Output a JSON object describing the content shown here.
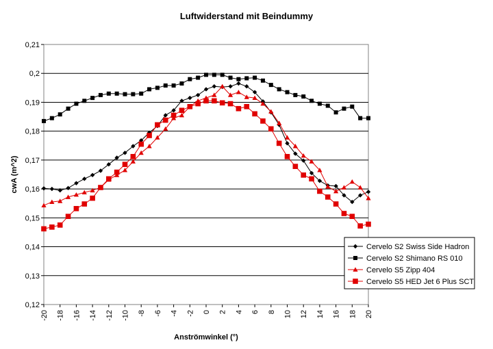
{
  "chart_data": {
    "type": "line",
    "title": "Luftwiderstand mit Beindummy",
    "xlabel": "Anströmwinkel (°)",
    "ylabel": "cwA (m^2)",
    "xlim": [
      -20,
      20
    ],
    "ylim": [
      0.12,
      0.21
    ],
    "x_ticks": [
      "-20",
      "-18",
      "-16",
      "-14",
      "-12",
      "-10",
      "-8",
      "-6",
      "-4",
      "-2",
      "0",
      "2",
      "4",
      "6",
      "8",
      "10",
      "12",
      "14",
      "16",
      "18",
      "20"
    ],
    "y_ticks": [
      "0,12",
      "0,13",
      "0,14",
      "0,15",
      "0,16",
      "0,17",
      "0,18",
      "0,19",
      "0,2",
      "0,21"
    ],
    "grid": "horizontal",
    "legend_position": "bottom-right",
    "x": [
      -20,
      -19,
      -18,
      -17,
      -16,
      -15,
      -14,
      -13,
      -12,
      -11,
      -10,
      -9,
      -8,
      -7,
      -6,
      -5,
      -4,
      -3,
      -2,
      -1,
      0,
      1,
      2,
      3,
      4,
      5,
      6,
      7,
      8,
      9,
      10,
      11,
      12,
      13,
      14,
      15,
      16,
      17,
      18,
      19,
      20
    ],
    "series": [
      {
        "name": "Cervelo S2 Swiss Side Hadron",
        "color": "#000000",
        "marker": "diamond",
        "values": [
          0.1602,
          0.16,
          0.1595,
          0.1603,
          0.162,
          0.1635,
          0.1648,
          0.1663,
          0.1685,
          0.1708,
          0.1725,
          0.1748,
          0.1768,
          0.1795,
          0.1818,
          0.1855,
          0.1872,
          0.1905,
          0.1915,
          0.1925,
          0.1945,
          0.1955,
          0.1953,
          0.1955,
          0.1965,
          0.1955,
          0.1935,
          0.1903,
          0.1865,
          0.1822,
          0.1758,
          0.1722,
          0.1698,
          0.1655,
          0.1628,
          0.1612,
          0.161,
          0.1578,
          0.1555,
          0.1578,
          0.159
        ]
      },
      {
        "name": "Cervelo S2 Shimano RS 010",
        "color": "#000000",
        "marker": "square",
        "values": [
          0.1835,
          0.1845,
          0.1858,
          0.1878,
          0.1895,
          0.1905,
          0.1915,
          0.1925,
          0.193,
          0.193,
          0.1928,
          0.1928,
          0.193,
          0.1945,
          0.195,
          0.1958,
          0.1958,
          0.1965,
          0.198,
          0.1985,
          0.1995,
          0.1995,
          0.1995,
          0.1985,
          0.198,
          0.1983,
          0.1985,
          0.1975,
          0.196,
          0.1945,
          0.1935,
          0.1925,
          0.192,
          0.1905,
          0.1895,
          0.1888,
          0.1865,
          0.1878,
          0.1885,
          0.1845,
          0.1845
        ]
      },
      {
        "name": "Cervelo S5 Zipp 404",
        "color": "#e00000",
        "marker": "triangle",
        "values": [
          0.1543,
          0.1555,
          0.1558,
          0.1572,
          0.158,
          0.1588,
          0.1595,
          0.1605,
          0.1632,
          0.1648,
          0.1665,
          0.1695,
          0.1725,
          0.1748,
          0.1778,
          0.1808,
          0.1845,
          0.1855,
          0.1885,
          0.1905,
          0.1915,
          0.1925,
          0.1955,
          0.1925,
          0.1935,
          0.1918,
          0.1915,
          0.1895,
          0.1868,
          0.1828,
          0.1778,
          0.1748,
          0.1715,
          0.1695,
          0.1665,
          0.1608,
          0.1592,
          0.1605,
          0.1625,
          0.1605,
          0.1568
        ]
      },
      {
        "name": "Cervelo S5 HED Jet 6 Plus SCT",
        "color": "#e00000",
        "marker": "square",
        "values": [
          0.1462,
          0.1468,
          0.1475,
          0.1505,
          0.1532,
          0.1548,
          0.1568,
          0.1605,
          0.1635,
          0.1658,
          0.1685,
          0.1712,
          0.1755,
          0.1785,
          0.1822,
          0.1838,
          0.1855,
          0.1872,
          0.1885,
          0.1895,
          0.1905,
          0.1905,
          0.1898,
          0.1895,
          0.1878,
          0.1885,
          0.186,
          0.1835,
          0.1808,
          0.1758,
          0.1712,
          0.1678,
          0.1648,
          0.1635,
          0.1592,
          0.1572,
          0.1548,
          0.1515,
          0.1505,
          0.1472,
          0.1478
        ]
      }
    ]
  }
}
